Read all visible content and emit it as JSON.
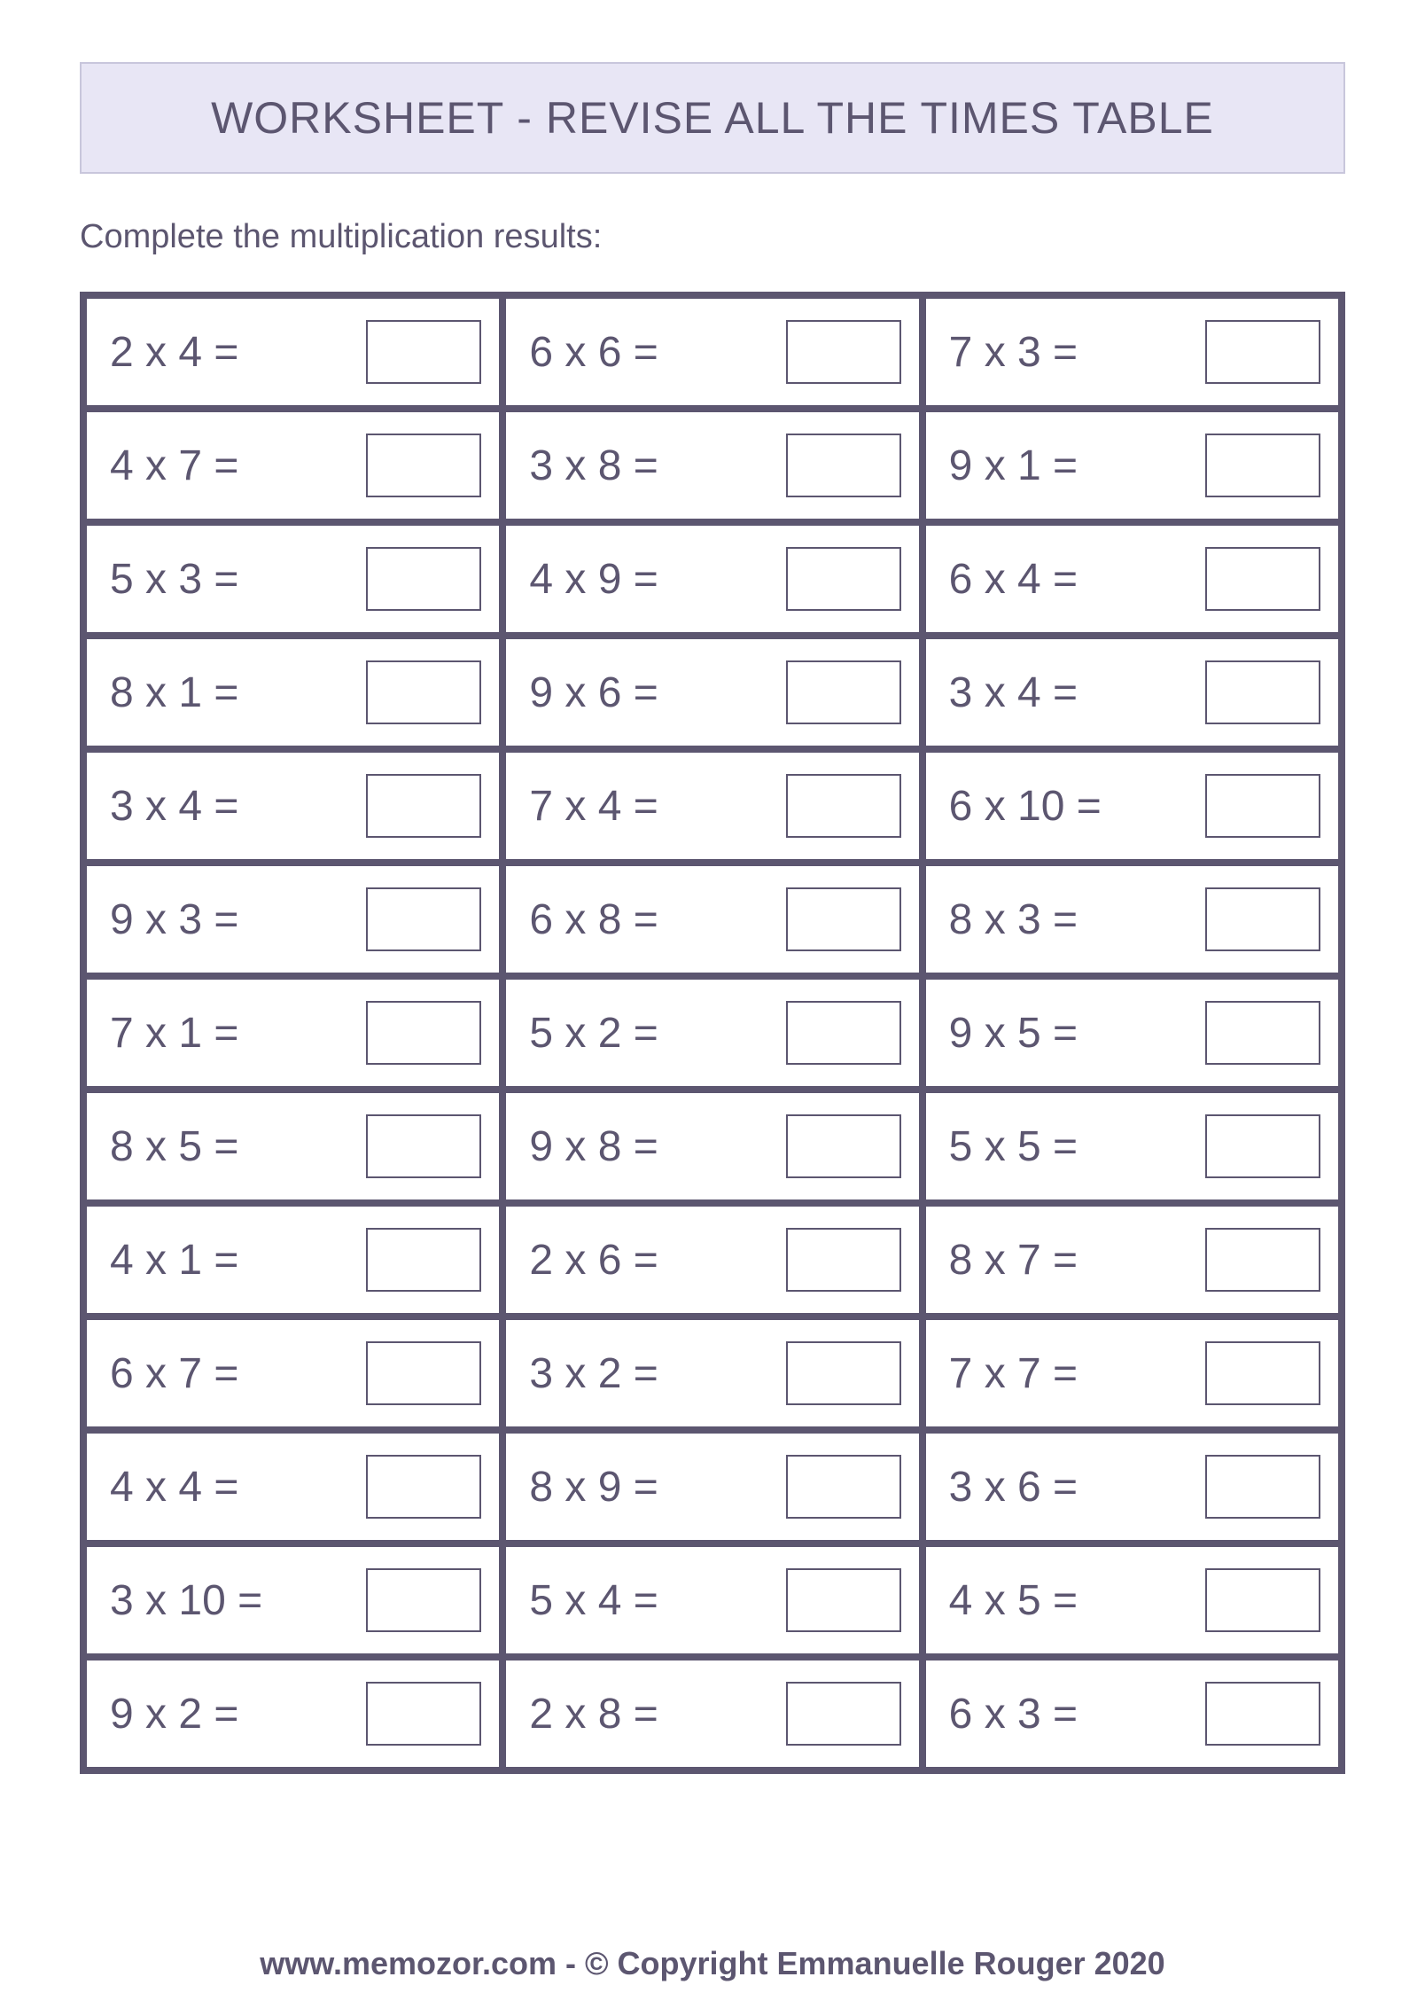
{
  "title": "WORKSHEET - REVISE ALL THE TIMES TABLE",
  "instruction": "Complete the multiplication results:",
  "footer": "www.memozor.com - © Copyright Emmanuelle Rouger 2020",
  "colors": {
    "banner_bg": "#e8e6f5",
    "banner_border": "#c8c6dc",
    "text": "#5c5670",
    "grid_border": "#5c5670",
    "page_bg": "#ffffff",
    "answer_box_border": "#5c5670"
  },
  "typography": {
    "title_fontsize": 50,
    "instruction_fontsize": 38,
    "expression_fontsize": 48,
    "footer_fontsize": 36,
    "font_family": "Arial"
  },
  "layout": {
    "columns": 3,
    "rows": 13,
    "answer_box_width": 130,
    "answer_box_height": 72
  },
  "problems": [
    {
      "a": 2,
      "b": 4,
      "expr": "2 x 4 ="
    },
    {
      "a": 6,
      "b": 6,
      "expr": "6 x 6 ="
    },
    {
      "a": 7,
      "b": 3,
      "expr": "7 x 3 ="
    },
    {
      "a": 4,
      "b": 7,
      "expr": "4 x 7 ="
    },
    {
      "a": 3,
      "b": 8,
      "expr": "3 x 8 ="
    },
    {
      "a": 9,
      "b": 1,
      "expr": "9 x 1 ="
    },
    {
      "a": 5,
      "b": 3,
      "expr": "5 x 3 ="
    },
    {
      "a": 4,
      "b": 9,
      "expr": "4 x 9 ="
    },
    {
      "a": 6,
      "b": 4,
      "expr": "6 x 4 ="
    },
    {
      "a": 8,
      "b": 1,
      "expr": "8 x 1 ="
    },
    {
      "a": 9,
      "b": 6,
      "expr": "9 x 6 ="
    },
    {
      "a": 3,
      "b": 4,
      "expr": "3 x 4 ="
    },
    {
      "a": 3,
      "b": 4,
      "expr": "3 x 4 ="
    },
    {
      "a": 7,
      "b": 4,
      "expr": "7 x 4 ="
    },
    {
      "a": 6,
      "b": 10,
      "expr": "6 x 10 ="
    },
    {
      "a": 9,
      "b": 3,
      "expr": "9 x 3 ="
    },
    {
      "a": 6,
      "b": 8,
      "expr": "6 x 8 ="
    },
    {
      "a": 8,
      "b": 3,
      "expr": "8 x 3 ="
    },
    {
      "a": 7,
      "b": 1,
      "expr": "7 x 1 ="
    },
    {
      "a": 5,
      "b": 2,
      "expr": "5 x 2 ="
    },
    {
      "a": 9,
      "b": 5,
      "expr": "9 x 5 ="
    },
    {
      "a": 8,
      "b": 5,
      "expr": "8 x 5 ="
    },
    {
      "a": 9,
      "b": 8,
      "expr": "9 x 8 ="
    },
    {
      "a": 5,
      "b": 5,
      "expr": "5 x 5 ="
    },
    {
      "a": 4,
      "b": 1,
      "expr": "4 x 1 ="
    },
    {
      "a": 2,
      "b": 6,
      "expr": "2 x 6 ="
    },
    {
      "a": 8,
      "b": 7,
      "expr": "8 x 7 ="
    },
    {
      "a": 6,
      "b": 7,
      "expr": "6 x 7 ="
    },
    {
      "a": 3,
      "b": 2,
      "expr": "3 x 2 ="
    },
    {
      "a": 7,
      "b": 7,
      "expr": "7 x 7 ="
    },
    {
      "a": 4,
      "b": 4,
      "expr": "4 x 4 ="
    },
    {
      "a": 8,
      "b": 9,
      "expr": "8 x 9 ="
    },
    {
      "a": 3,
      "b": 6,
      "expr": "3 x 6 ="
    },
    {
      "a": 3,
      "b": 10,
      "expr": "3 x 10 ="
    },
    {
      "a": 5,
      "b": 4,
      "expr": "5 x 4 ="
    },
    {
      "a": 4,
      "b": 5,
      "expr": "4 x 5 ="
    },
    {
      "a": 9,
      "b": 2,
      "expr": "9 x 2 ="
    },
    {
      "a": 2,
      "b": 8,
      "expr": "2 x 8 ="
    },
    {
      "a": 6,
      "b": 3,
      "expr": "6 x 3 ="
    }
  ]
}
